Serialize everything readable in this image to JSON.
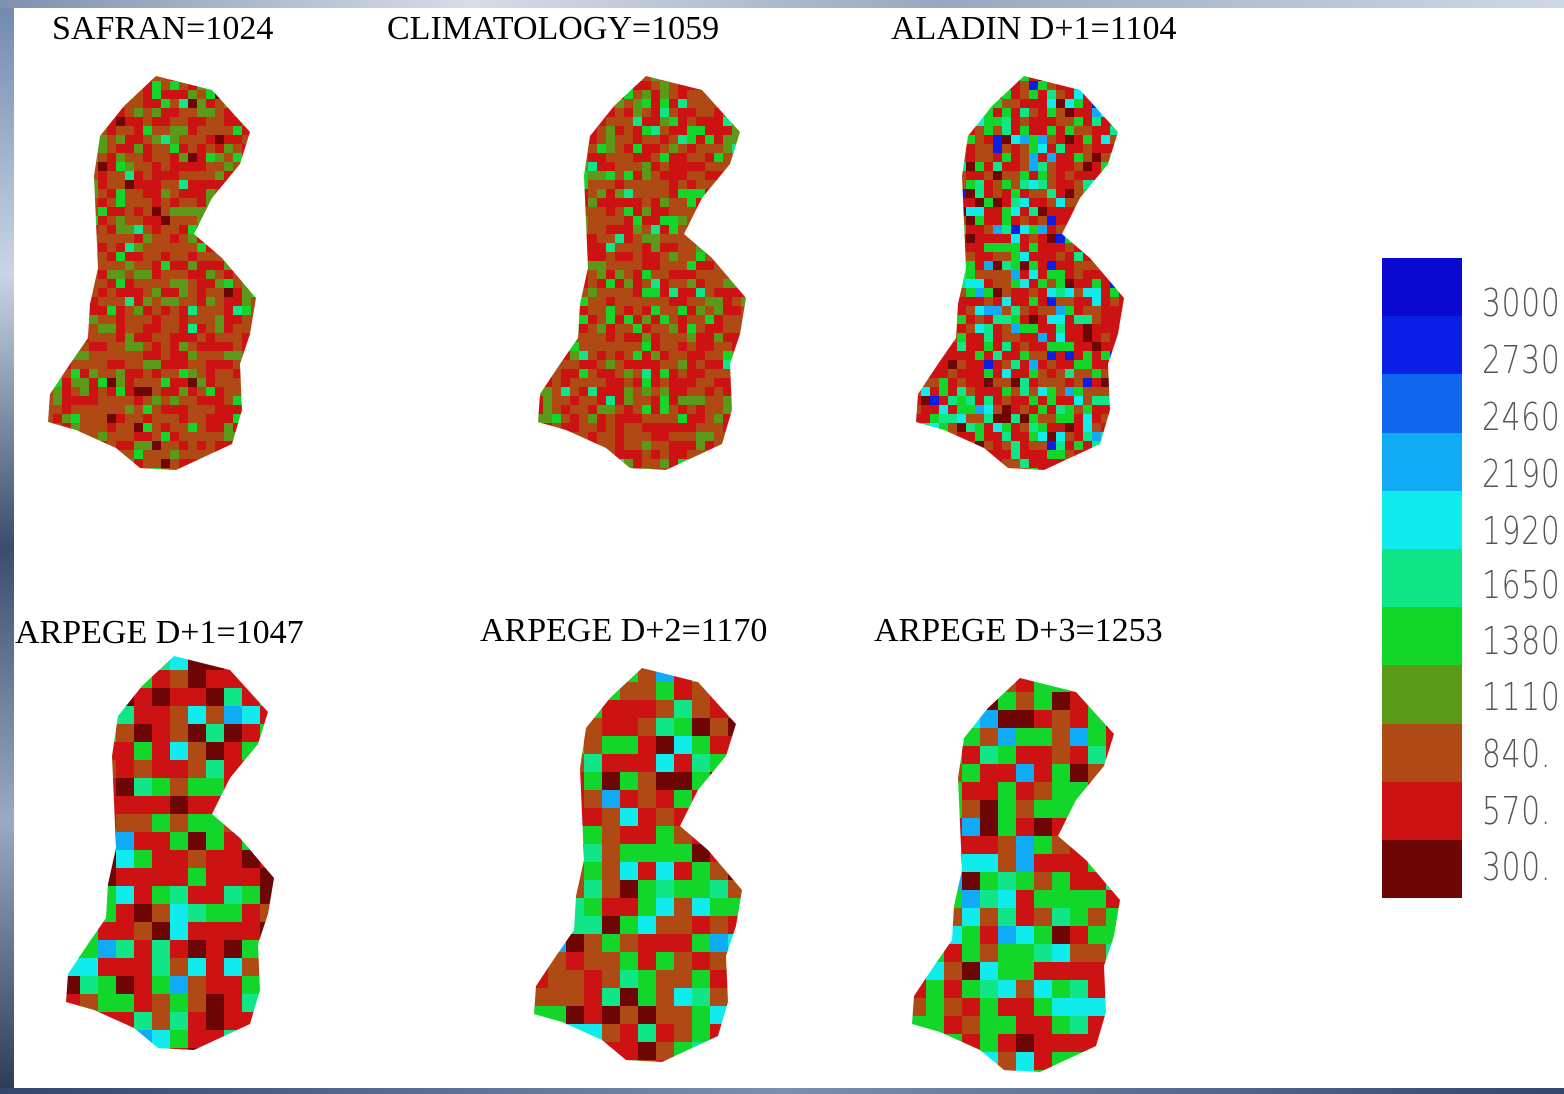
{
  "panels": [
    {
      "title": "SAFRAN=1024"
    },
    {
      "title": "CLIMATOLOGY=1059"
    },
    {
      "title": "ALADIN D+1=1104"
    },
    {
      "title": "ARPEGE D+1=1047"
    },
    {
      "title": "ARPEGE D+2=1170"
    },
    {
      "title": "ARPEGE D+3=1253"
    }
  ],
  "legend": {
    "levels": [
      "3000.",
      "2730.",
      "2460.",
      "2190.",
      "1920.",
      "1650.",
      "1380.",
      "1110.",
      "840.",
      "570.",
      "300."
    ],
    "colors": [
      "#0a0ad2",
      "#0b1ee6",
      "#1166ee",
      "#10aaf5",
      "#10ecec",
      "#10e688",
      "#12d62a",
      "#5a9a18",
      "#b04a14",
      "#cc1212",
      "#6e0606"
    ]
  }
}
